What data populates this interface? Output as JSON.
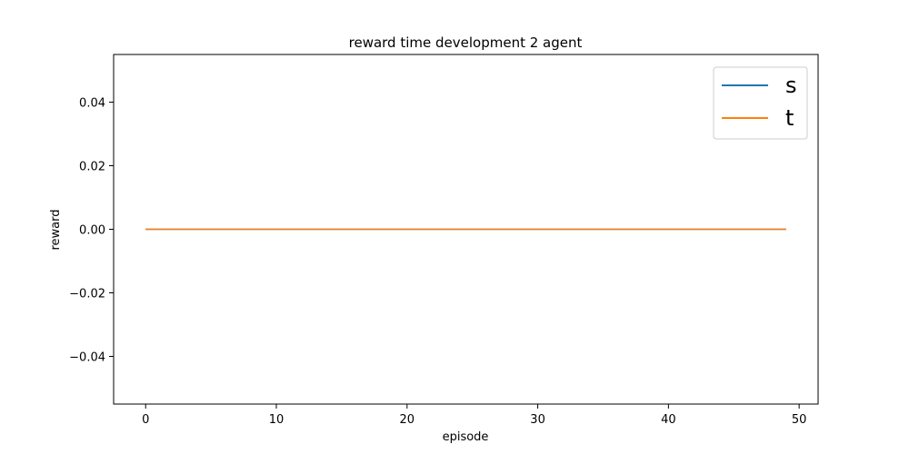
{
  "chart_data": {
    "type": "line",
    "title": "reward time development 2 agent",
    "xlabel": "episode",
    "ylabel": "reward",
    "xlim": [
      -2.45,
      51.45
    ],
    "ylim": [
      -0.055,
      0.055
    ],
    "x_ticks": [
      0,
      10,
      20,
      30,
      40,
      50
    ],
    "y_ticks": [
      -0.04,
      -0.02,
      0.0,
      0.02,
      0.04
    ],
    "x_tick_labels": [
      "0",
      "10",
      "20",
      "30",
      "40",
      "50"
    ],
    "y_tick_labels": [
      "−0.04",
      "−0.02",
      "0.00",
      "0.02",
      "0.04"
    ],
    "grid": false,
    "legend_position": "top-right",
    "series": [
      {
        "name": "s",
        "color": "#1f77b4",
        "x": [
          0,
          49
        ],
        "y": [
          0,
          0
        ]
      },
      {
        "name": "t",
        "color": "#ff7f0e",
        "x": [
          0,
          49
        ],
        "y": [
          0,
          0
        ]
      }
    ]
  }
}
